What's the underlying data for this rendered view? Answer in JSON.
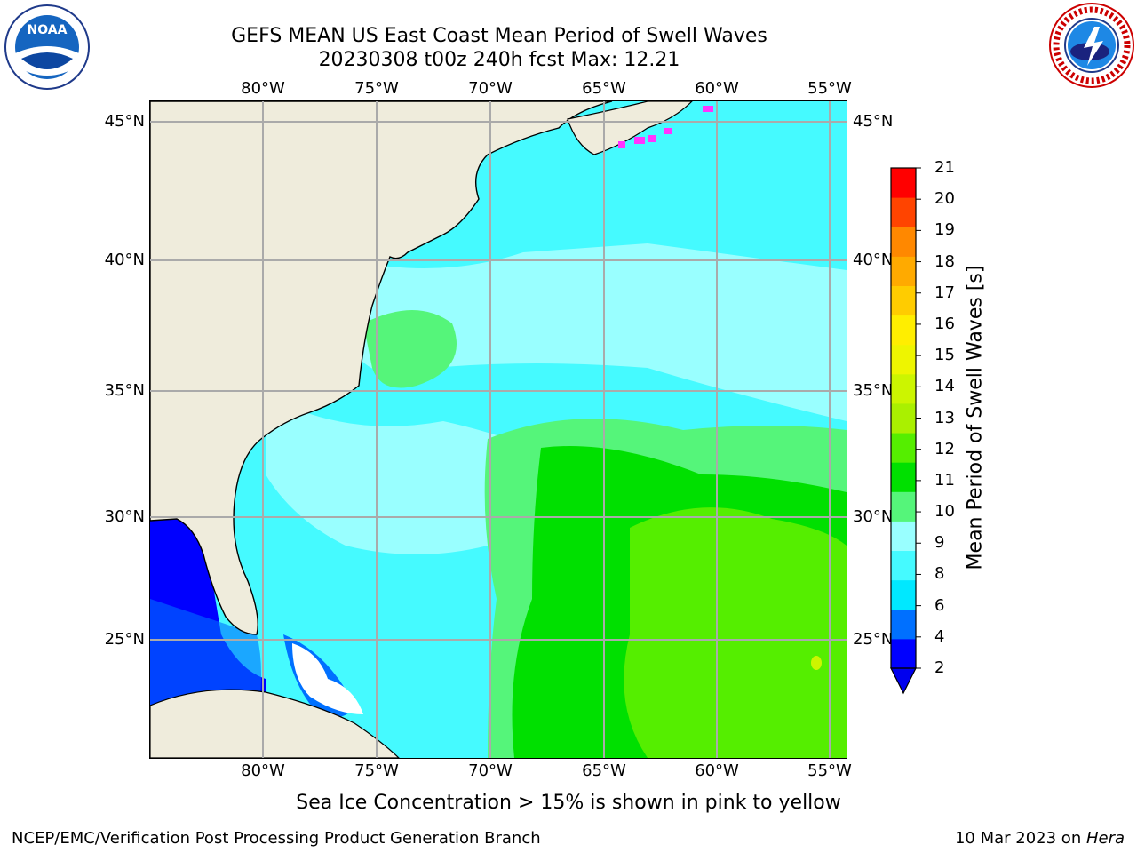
{
  "title": {
    "line1": "GEFS MEAN US East Coast Mean Period of Swell Waves",
    "line2": "20230308 t00z 240h fcst   Max: 12.21"
  },
  "axes": {
    "lon_labels": [
      "80°W",
      "75°W",
      "70°W",
      "65°W",
      "60°W",
      "55°W"
    ],
    "lat_labels_left": [
      "45°N",
      "40°N",
      "35°N",
      "30°N",
      "25°N"
    ],
    "lat_labels_right": [
      "45°N",
      "40°N",
      "35°N",
      "30°N",
      "25°N"
    ]
  },
  "colorbar": {
    "title": "Mean Period of Swell Waves [s]",
    "ticks": [
      "2",
      "4",
      "6",
      "8",
      "9",
      "10",
      "11",
      "12",
      "13",
      "14",
      "15",
      "16",
      "17",
      "18",
      "19",
      "20",
      "21"
    ],
    "colors": [
      "#0000ff",
      "#0070ff",
      "#00e8ff",
      "#45faff",
      "#99ffff",
      "#55f57a",
      "#00e000",
      "#55ee00",
      "#aaf000",
      "#ccf500",
      "#eef500",
      "#ffee00",
      "#ffcc00",
      "#ffaa00",
      "#ff8800",
      "#ff4400",
      "#ff0000"
    ],
    "extend_color": "#0000ee"
  },
  "map_colors": {
    "land": "#efecdc",
    "ocean_base": "#45faff",
    "ice_pink": "#ff33ff",
    "grid": "#aaaaaa"
  },
  "footer": {
    "note": "Sea Ice Concentration > 15% is shown in pink to yellow",
    "left": "NCEP/EMC/Verification Post Processing Product Generation Branch",
    "right_prefix": "10 Mar 2023 on ",
    "right_host": "Hera"
  },
  "logos": {
    "noaa": "NOAA",
    "nws_ring": "NATIONAL WEATHER SERVICE"
  }
}
